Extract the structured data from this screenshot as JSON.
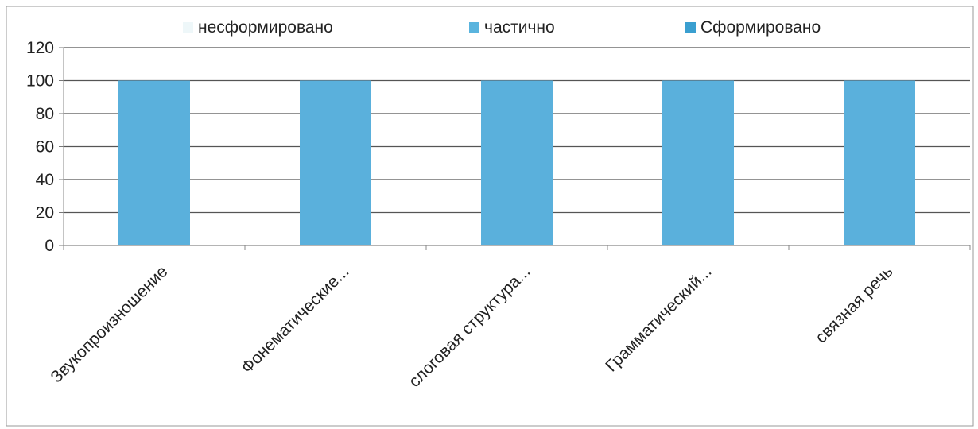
{
  "chart_data": {
    "type": "bar",
    "categories": [
      "Звукопроизношение",
      "Фонематические...",
      "слоговая структура...",
      "Грамматический...",
      "связная речь"
    ],
    "series": [
      {
        "name": "несформировано",
        "color": "#eef7f9",
        "values": [
          0,
          0,
          0,
          0,
          0
        ]
      },
      {
        "name": "частично",
        "color": "#5ab4de",
        "values": [
          0,
          0,
          0,
          0,
          0
        ]
      },
      {
        "name": "Сформировано",
        "color": "#3a9fd0",
        "values": [
          100,
          100,
          100,
          100,
          100
        ]
      }
    ],
    "bar_color": "#5ab0dc",
    "stacked": true,
    "ylim": [
      0,
      120
    ],
    "yticks": [
      "0",
      "20",
      "40",
      "60",
      "80",
      "100",
      "120"
    ],
    "grid": true,
    "legend_position": "top"
  }
}
